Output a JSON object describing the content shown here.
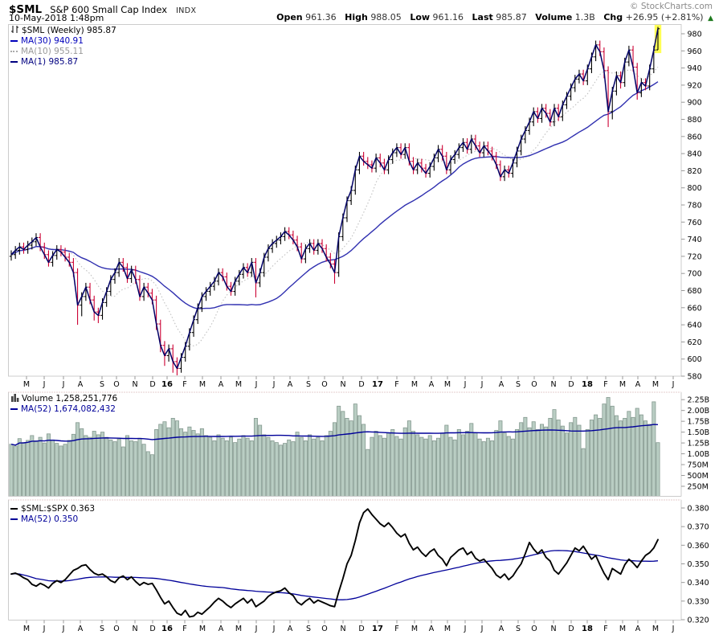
{
  "header": {
    "symbol": "$SML",
    "name": "S&P 600 Small Cap Index",
    "exchange": "INDX",
    "datetime": "10-May-2018 1:48pm",
    "copyright": "© StockCharts.com",
    "summary": [
      {
        "label": "Open",
        "value": "961.36"
      },
      {
        "label": "High",
        "value": "988.05"
      },
      {
        "label": "Low",
        "value": "961.16"
      },
      {
        "label": "Last",
        "value": "985.87"
      },
      {
        "label": "Volume",
        "value": "1.3B"
      },
      {
        "label": "Chg",
        "value": "+26.95 (+2.81%)"
      }
    ],
    "change_arrow": "▲"
  },
  "price_panel": {
    "legend": {
      "symbol_line": "$SML (Weekly) 985.87",
      "ma30": "MA(30) 940.91",
      "ma10": "MA(10) 955.11",
      "ma1": "MA(1) 985.87"
    }
  },
  "volume_panel": {
    "legend": {
      "volume": "Volume 1,258,251,776",
      "ma52": "MA(52) 1,674,082,432"
    }
  },
  "ratio_panel": {
    "legend": {
      "ratio": "$SML:$SPX 0.363",
      "ma52": "MA(52) 0.350"
    }
  },
  "colors": {
    "up": "#000000",
    "down": "#cc0033",
    "ma30": "#3030b0",
    "ma10": "#c0c0c0",
    "ma1": "#000066",
    "ma52": "#000099",
    "volume_fill": "#b9cdc3",
    "volume_stroke": "#84998f",
    "ratio_line": "#000000",
    "highlight": "#ffff55",
    "panel_border": "#cccccc",
    "subpanel_top_border": "#cc9999",
    "tick": "#999999",
    "chg_green": "#1e7a1e"
  },
  "chart_data": {
    "type": [
      "ohlc",
      "bar",
      "line"
    ],
    "title": "$SML S&P 600 Small Cap Index (Weekly) with Volume and $SML:$SPX ratio",
    "x_range": "May 2015 - May 2018 (weekly bars)",
    "months": [
      [
        "M",
        23
      ],
      [
        "J",
        45
      ],
      [
        "J",
        69
      ],
      [
        "A",
        90
      ],
      [
        "S",
        117
      ],
      [
        "O",
        135
      ],
      [
        "N",
        158
      ],
      [
        "D",
        180
      ],
      [
        "16",
        198
      ],
      [
        "F",
        220
      ],
      [
        "M",
        242
      ],
      [
        "A",
        265
      ],
      [
        "M",
        287
      ],
      [
        "J",
        309
      ],
      [
        "J",
        331
      ],
      [
        "A",
        351
      ],
      [
        "S",
        374
      ],
      [
        "O",
        394
      ],
      [
        "N",
        417
      ],
      [
        "D",
        440
      ],
      [
        "17",
        460
      ],
      [
        "F",
        484
      ],
      [
        "M",
        506
      ],
      [
        "A",
        527
      ],
      [
        "M",
        547
      ],
      [
        "J",
        569
      ],
      [
        "J",
        590
      ],
      [
        "A",
        614
      ],
      [
        "S",
        635
      ],
      [
        "O",
        655
      ],
      [
        "N",
        679
      ],
      [
        "D",
        701
      ],
      [
        "18",
        721
      ],
      [
        "F",
        744
      ],
      [
        "M",
        765
      ],
      [
        "A",
        784
      ],
      [
        "M",
        806
      ],
      [
        "J",
        828
      ]
    ],
    "panels": [
      {
        "name": "price",
        "type": "ohlc",
        "ylim": [
          580,
          980
        ],
        "y_ticks": [
          980,
          960,
          940,
          920,
          900,
          880,
          860,
          840,
          820,
          800,
          780,
          760,
          740,
          720,
          700,
          680,
          660,
          640,
          620,
          600,
          580
        ],
        "overlays": [
          {
            "name": "MA(30)",
            "window": 30
          },
          {
            "name": "MA(10)",
            "window": 10,
            "style": "dotted"
          },
          {
            "name": "MA(1)",
            "window": 1
          }
        ],
        "last_bar": {
          "open": 961.36,
          "high": 988.05,
          "low": 961.16,
          "close": 985.87,
          "highlighted": true
        },
        "close": [
          722,
          727,
          731,
          728,
          733,
          737,
          742,
          731,
          722,
          713,
          721,
          728,
          725,
          719,
          713,
          701,
          663,
          673,
          684,
          669,
          655,
          651,
          666,
          679,
          693,
          701,
          713,
          707,
          694,
          704,
          693,
          673,
          684,
          677,
          669,
          641,
          616,
          604,
          612,
          597,
          589,
          602,
          615,
          631,
          646,
          660,
          673,
          679,
          685,
          691,
          701,
          696,
          685,
          679,
          691,
          699,
          707,
          701,
          713,
          689,
          701,
          719,
          729,
          735,
          739,
          743,
          749,
          745,
          739,
          731,
          717,
          729,
          735,
          727,
          735,
          729,
          719,
          711,
          701,
          743,
          765,
          785,
          797,
          821,
          837,
          831,
          827,
          823,
          835,
          829,
          821,
          833,
          841,
          847,
          839,
          847,
          831,
          821,
          829,
          823,
          817,
          825,
          835,
          845,
          837,
          821,
          833,
          839,
          847,
          853,
          845,
          857,
          849,
          841,
          849,
          843,
          837,
          827,
          813,
          821,
          817,
          829,
          843,
          857,
          867,
          877,
          889,
          881,
          893,
          887,
          877,
          893,
          883,
          897,
          907,
          917,
          927,
          933,
          925,
          939,
          953,
          967,
          959,
          937,
          889,
          913,
          931,
          923,
          947,
          961,
          941,
          911,
          923,
          919,
          939,
          961,
          985.87
        ],
        "high": [
          727,
          732,
          736,
          736,
          738,
          742,
          747,
          747,
          736,
          727,
          726,
          733,
          733,
          730,
          724,
          718,
          706,
          678,
          689,
          689,
          674,
          660,
          671,
          684,
          698,
          706,
          718,
          718,
          712,
          709,
          709,
          698,
          689,
          689,
          682,
          674,
          646,
          621,
          617,
          617,
          602,
          607,
          620,
          636,
          651,
          665,
          678,
          684,
          690,
          696,
          706,
          706,
          701,
          690,
          696,
          704,
          712,
          712,
          718,
          718,
          706,
          724,
          734,
          740,
          744,
          748,
          754,
          754,
          750,
          744,
          736,
          734,
          740,
          740,
          740,
          740,
          734,
          724,
          716,
          748,
          770,
          790,
          802,
          826,
          842,
          842,
          836,
          832,
          840,
          840,
          834,
          838,
          846,
          852,
          852,
          852,
          852,
          836,
          834,
          834,
          828,
          830,
          840,
          850,
          850,
          842,
          838,
          844,
          852,
          858,
          858,
          862,
          862,
          854,
          854,
          854,
          848,
          842,
          832,
          826,
          826,
          834,
          848,
          862,
          872,
          882,
          894,
          894,
          898,
          898,
          892,
          898,
          898,
          902,
          912,
          922,
          932,
          938,
          938,
          944,
          958,
          972,
          972,
          964,
          942,
          918,
          936,
          936,
          952,
          966,
          966,
          946,
          928,
          928,
          944,
          966,
          988.05
        ],
        "low": [
          715,
          717,
          722,
          723,
          723,
          728,
          732,
          726,
          717,
          708,
          708,
          716,
          720,
          714,
          708,
          696,
          640,
          650,
          668,
          664,
          645,
          642,
          646,
          661,
          674,
          688,
          696,
          702,
          689,
          689,
          688,
          668,
          668,
          672,
          664,
          634,
          608,
          592,
          597,
          584,
          581,
          584,
          597,
          610,
          626,
          641,
          655,
          668,
          674,
          680,
          686,
          691,
          680,
          674,
          674,
          686,
          694,
          696,
          696,
          672,
          684,
          696,
          714,
          724,
          730,
          734,
          738,
          740,
          734,
          726,
          712,
          712,
          724,
          722,
          722,
          724,
          714,
          706,
          688,
          696,
          738,
          760,
          780,
          792,
          816,
          826,
          822,
          818,
          818,
          824,
          816,
          816,
          828,
          836,
          834,
          834,
          826,
          816,
          816,
          818,
          812,
          812,
          820,
          830,
          832,
          816,
          816,
          828,
          834,
          842,
          840,
          840,
          844,
          836,
          836,
          838,
          832,
          822,
          808,
          808,
          812,
          812,
          824,
          838,
          852,
          862,
          872,
          876,
          876,
          882,
          872,
          872,
          878,
          878,
          892,
          902,
          912,
          922,
          920,
          920,
          934,
          948,
          954,
          928,
          871,
          880,
          908,
          916,
          918,
          942,
          936,
          903,
          906,
          914,
          914,
          934,
          961.16
        ]
      },
      {
        "name": "volume",
        "type": "bar",
        "unit": "millions",
        "y_ticks": [
          {
            "v": 2250,
            "label": "2.25B"
          },
          {
            "v": 2000,
            "label": "2.00B"
          },
          {
            "v": 1750,
            "label": "1.75B"
          },
          {
            "v": 1500,
            "label": "1.50B"
          },
          {
            "v": 1250,
            "label": "1.25B"
          },
          {
            "v": 1000,
            "label": "1.00B"
          },
          {
            "v": 750,
            "label": "750M"
          },
          {
            "v": 500,
            "label": "500M"
          },
          {
            "v": 250,
            "label": "250M"
          }
        ],
        "ma_window": 52,
        "values": [
          1220,
          1180,
          1350,
          1260,
          1310,
          1420,
          1300,
          1380,
          1250,
          1460,
          1320,
          1240,
          1180,
          1220,
          1310,
          1450,
          1720,
          1580,
          1420,
          1380,
          1520,
          1440,
          1500,
          1380,
          1320,
          1280,
          1340,
          1160,
          1420,
          1300,
          1280,
          1360,
          1220,
          1050,
          980,
          1560,
          1680,
          1740,
          1600,
          1820,
          1760,
          1580,
          1500,
          1620,
          1540,
          1460,
          1580,
          1420,
          1380,
          1300,
          1440,
          1360,
          1300,
          1380,
          1260,
          1340,
          1420,
          1360,
          1300,
          1820,
          1660,
          1440,
          1380,
          1300,
          1260,
          1200,
          1240,
          1320,
          1280,
          1500,
          1380,
          1300,
          1440,
          1340,
          1380,
          1300,
          1420,
          1520,
          1720,
          2100,
          1980,
          1820,
          1760,
          2150,
          1880,
          1680,
          1100,
          1380,
          1520,
          1420,
          1360,
          1480,
          1560,
          1400,
          1340,
          1600,
          1760,
          1520,
          1440,
          1380,
          1340,
          1420,
          1300,
          1360,
          1480,
          1660,
          1380,
          1320,
          1560,
          1440,
          1520,
          1700,
          1480,
          1340,
          1280,
          1360,
          1300,
          1540,
          1760,
          1480,
          1400,
          1340,
          1560,
          1720,
          1840,
          1600,
          1740,
          1560,
          1680,
          1620,
          1820,
          2020,
          1780,
          1640,
          1480,
          1720,
          1840,
          1660,
          1120,
          1560,
          1780,
          1900,
          1820,
          2150,
          2300,
          2100,
          1880,
          1760,
          1820,
          1980,
          1840,
          2050,
          1900,
          1760,
          1680,
          2200,
          1258
        ]
      },
      {
        "name": "ratio",
        "type": "line",
        "y_ticks": [
          {
            "v": 0.38,
            "label": "0.380"
          },
          {
            "v": 0.37,
            "label": "0.370"
          },
          {
            "v": 0.36,
            "label": "0.360"
          },
          {
            "v": 0.35,
            "label": "0.350"
          },
          {
            "v": 0.34,
            "label": "0.340"
          },
          {
            "v": 0.33,
            "label": "0.330"
          },
          {
            "v": 0.32,
            "label": "0.320"
          }
        ],
        "ma_window": 52,
        "values": [
          0.3445,
          0.345,
          0.344,
          0.3425,
          0.3415,
          0.339,
          0.338,
          0.3395,
          0.3385,
          0.337,
          0.3395,
          0.341,
          0.34,
          0.3415,
          0.344,
          0.3465,
          0.3475,
          0.349,
          0.3495,
          0.347,
          0.345,
          0.344,
          0.3445,
          0.343,
          0.341,
          0.34,
          0.3425,
          0.3435,
          0.3415,
          0.343,
          0.3405,
          0.3385,
          0.34,
          0.339,
          0.3395,
          0.336,
          0.332,
          0.3285,
          0.33,
          0.3265,
          0.3235,
          0.3225,
          0.325,
          0.3215,
          0.322,
          0.324,
          0.323,
          0.325,
          0.327,
          0.3295,
          0.3315,
          0.33,
          0.328,
          0.3265,
          0.3285,
          0.33,
          0.3315,
          0.329,
          0.331,
          0.327,
          0.3285,
          0.33,
          0.3325,
          0.334,
          0.335,
          0.3355,
          0.337,
          0.3345,
          0.333,
          0.3295,
          0.328,
          0.33,
          0.3315,
          0.329,
          0.3305,
          0.3295,
          0.3285,
          0.3275,
          0.327,
          0.335,
          0.342,
          0.35,
          0.3545,
          0.3625,
          0.372,
          0.3775,
          0.3795,
          0.3765,
          0.374,
          0.3715,
          0.37,
          0.372,
          0.3695,
          0.3665,
          0.3645,
          0.366,
          0.361,
          0.3575,
          0.359,
          0.356,
          0.354,
          0.3565,
          0.358,
          0.3545,
          0.3525,
          0.349,
          0.3535,
          0.3555,
          0.3575,
          0.3585,
          0.355,
          0.3565,
          0.353,
          0.3515,
          0.3525,
          0.35,
          0.3475,
          0.344,
          0.3425,
          0.3445,
          0.3415,
          0.3435,
          0.347,
          0.35,
          0.3555,
          0.3615,
          0.358,
          0.3555,
          0.3575,
          0.3535,
          0.3515,
          0.3465,
          0.3445,
          0.3475,
          0.3505,
          0.3545,
          0.3585,
          0.357,
          0.3595,
          0.356,
          0.3525,
          0.3545,
          0.3495,
          0.345,
          0.3415,
          0.3475,
          0.346,
          0.3445,
          0.3495,
          0.3525,
          0.3505,
          0.348,
          0.3515,
          0.3545,
          0.356,
          0.3585,
          0.363
        ]
      }
    ]
  }
}
